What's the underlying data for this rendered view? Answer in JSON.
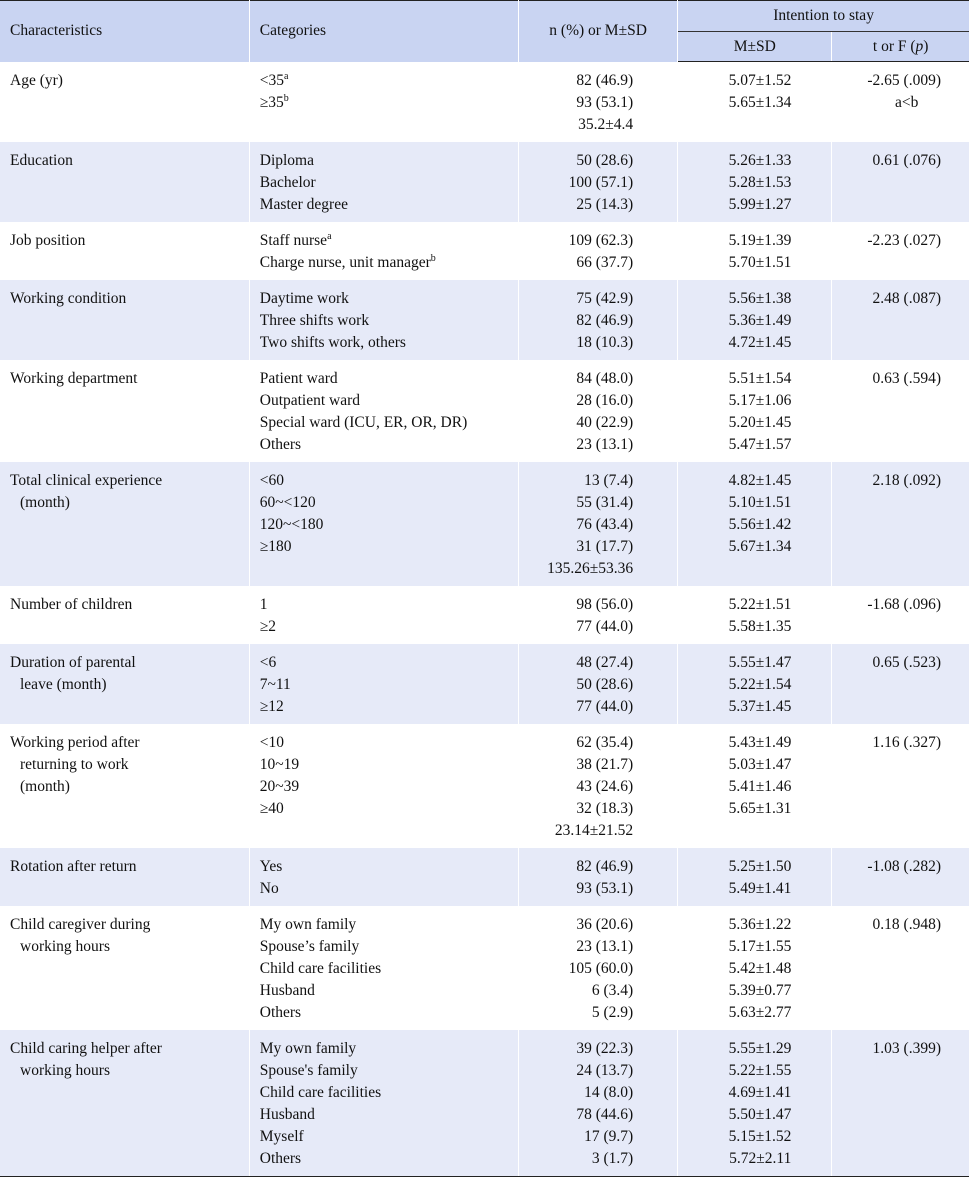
{
  "header": {
    "characteristics": "Characteristics",
    "categories": "Categories",
    "n_col": "n (%) or M±SD",
    "group": "Intention to stay",
    "msd": "M±SD",
    "tf_prefix": "t or F (",
    "tf_p": "p",
    "tf_suffix": ")"
  },
  "rows": [
    {
      "char": [
        "Age (yr)"
      ],
      "cats": [
        "<35",
        "≥35"
      ],
      "sups": [
        "a",
        "b"
      ],
      "n": [
        "82 (46.9)",
        "93 (53.1)",
        "35.2±4.4"
      ],
      "m": [
        "5.07±1.52",
        "5.65±1.34"
      ],
      "t": "-2.65 (.009)",
      "post": "a<b"
    },
    {
      "char": [
        "Education"
      ],
      "cats": [
        "Diploma",
        "Bachelor",
        "Master degree"
      ],
      "n": [
        "50 (28.6)",
        "100 (57.1)",
        "25 (14.3)"
      ],
      "m": [
        "5.26±1.33",
        "5.28±1.53",
        "5.99±1.27"
      ],
      "t": "0.61 (.076)"
    },
    {
      "char": [
        "Job position"
      ],
      "cats": [
        "Staff nurse",
        "Charge nurse, unit manager"
      ],
      "sups": [
        "a",
        "b"
      ],
      "n": [
        "109 (62.3)",
        "66 (37.7)"
      ],
      "m": [
        "5.19±1.39",
        "5.70±1.51"
      ],
      "t": "-2.23 (.027)"
    },
    {
      "char": [
        "Working condition"
      ],
      "cats": [
        "Daytime work",
        "Three shifts work",
        "Two shifts work, others"
      ],
      "n": [
        "75 (42.9)",
        "82 (46.9)",
        "18 (10.3)"
      ],
      "m": [
        "5.56±1.38",
        "5.36±1.49",
        "4.72±1.45"
      ],
      "t": "2.48 (.087)"
    },
    {
      "char": [
        "Working department"
      ],
      "cats": [
        "Patient ward",
        "Outpatient ward",
        "Special ward (ICU, ER, OR, DR)",
        "Others"
      ],
      "n": [
        "84 (48.0)",
        "28 (16.0)",
        "40 (22.9)",
        "23 (13.1)"
      ],
      "m": [
        "5.51±1.54",
        "5.17±1.06",
        "5.20±1.45",
        "5.47±1.57"
      ],
      "t": "0.63 (.594)"
    },
    {
      "char": [
        "Total clinical experience",
        "(month)"
      ],
      "cats": [
        "<60",
        "60~<120",
        "120~<180",
        "≥180"
      ],
      "n": [
        "13 (7.4)",
        "55 (31.4)",
        "76 (43.4)",
        "31 (17.7)",
        "135.26±53.36"
      ],
      "m": [
        "4.82±1.45",
        "5.10±1.51",
        "5.56±1.42",
        "5.67±1.34"
      ],
      "t": "2.18 (.092)"
    },
    {
      "char": [
        "Number of children"
      ],
      "cats": [
        "1",
        "≥2"
      ],
      "n": [
        "98 (56.0)",
        "77 (44.0)"
      ],
      "m": [
        "5.22±1.51",
        "5.58±1.35"
      ],
      "t": "-1.68 (.096)"
    },
    {
      "char": [
        "Duration of parental",
        "leave (month)"
      ],
      "cats": [
        "<6",
        "7~11",
        "≥12"
      ],
      "n": [
        "48 (27.4)",
        "50 (28.6)",
        "77 (44.0)"
      ],
      "m": [
        "5.55±1.47",
        "5.22±1.54",
        "5.37±1.45"
      ],
      "t": "0.65 (.523)"
    },
    {
      "char": [
        "Working period after",
        "returning to work",
        "(month)"
      ],
      "cats": [
        "<10",
        "10~19",
        "20~39",
        "≥40"
      ],
      "n": [
        "62 (35.4)",
        "38 (21.7)",
        "43 (24.6)",
        "32 (18.3)",
        "23.14±21.52"
      ],
      "m": [
        "5.43±1.49",
        "5.03±1.47",
        "5.41±1.46",
        "5.65±1.31"
      ],
      "t": "1.16 (.327)"
    },
    {
      "char": [
        "Rotation after return"
      ],
      "cats": [
        "Yes",
        "No"
      ],
      "n": [
        "82 (46.9)",
        "93 (53.1)"
      ],
      "m": [
        "5.25±1.50",
        "5.49±1.41"
      ],
      "t": "-1.08 (.282)"
    },
    {
      "char": [
        "Child caregiver during",
        "working hours"
      ],
      "cats": [
        "My own family",
        "Spouse’s family",
        "Child care facilities",
        "Husband",
        "Others"
      ],
      "n": [
        "36 (20.6)",
        "23 (13.1)",
        "105 (60.0)",
        "6 (3.4)",
        "5 (2.9)"
      ],
      "m": [
        "5.36±1.22",
        "5.17±1.55",
        "5.42±1.48",
        "5.39±0.77",
        "5.63±2.77"
      ],
      "t": "0.18 (.948)"
    },
    {
      "char": [
        "Child caring helper after",
        "working hours"
      ],
      "cats": [
        "My own family",
        "Spouse's family",
        "Child care facilities",
        "Husband",
        "Myself",
        "Others"
      ],
      "n": [
        "39 (22.3)",
        "24 (13.7)",
        "14 (8.0)",
        "78 (44.6)",
        "17 (9.7)",
        "3 (1.7)"
      ],
      "m": [
        "5.55±1.29",
        "5.22±1.55",
        "4.69±1.41",
        "5.50±1.47",
        "5.15±1.52",
        "5.72±2.11"
      ],
      "t": "1.03 (.399)"
    }
  ]
}
